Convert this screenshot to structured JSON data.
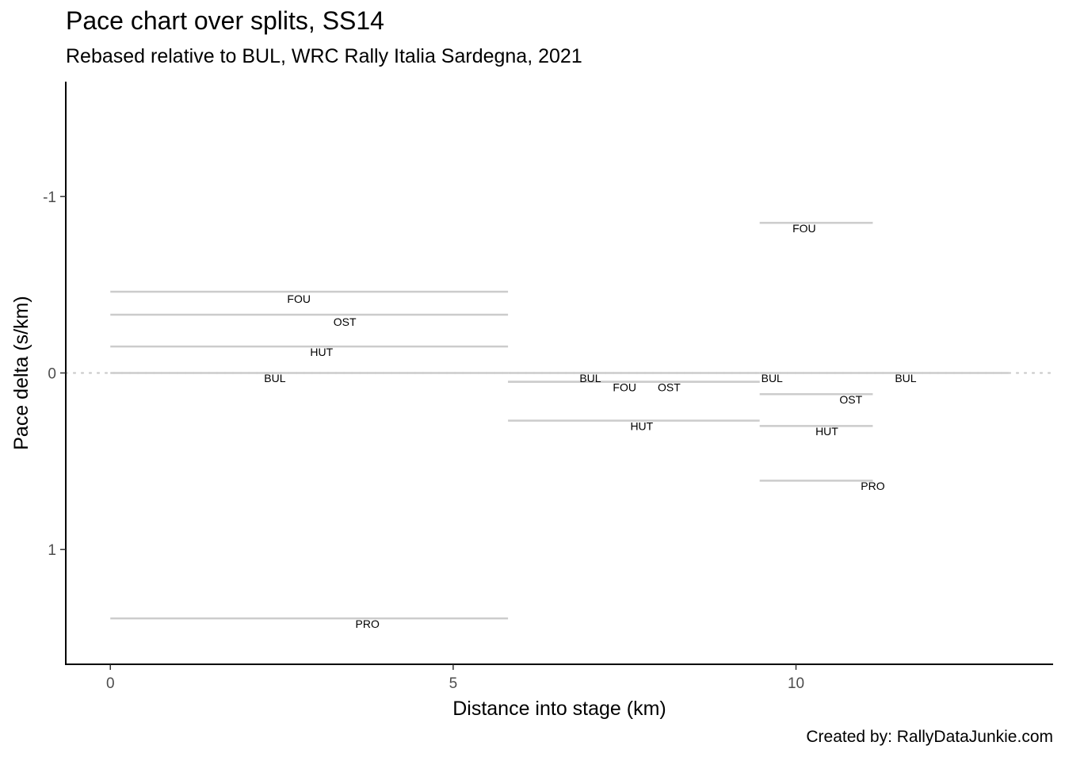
{
  "title": "Pace chart over splits, SS14",
  "subtitle": "Rebased relative to BUL, WRC Rally Italia Sardegna, 2021",
  "caption": "Created by: RallyDataJunkie.com",
  "chart_data": {
    "type": "line",
    "xlabel": "Distance into stage (km)",
    "ylabel": "Pace delta (s/km)",
    "xlim": [
      -0.65,
      13.75
    ],
    "ylim": [
      -1.65,
      1.65
    ],
    "y_reversed": true,
    "x_ticks": [
      0,
      5,
      10
    ],
    "x_tick_labels": [
      "0",
      "5",
      "10"
    ],
    "y_ticks": [
      -1,
      0,
      1
    ],
    "y_tick_labels": [
      "-1",
      "0",
      "1"
    ],
    "reference_line": {
      "y": 0,
      "style": "dotted",
      "color": "#cccccc"
    },
    "segment_color": "#cccccc",
    "segments": [
      {
        "driver": "FOU",
        "x_start": 0.0,
        "x_end": 5.8,
        "pace_delta": -0.46
      },
      {
        "driver": "OST",
        "x_start": 0.0,
        "x_end": 5.8,
        "pace_delta": -0.33
      },
      {
        "driver": "HUT",
        "x_start": 0.0,
        "x_end": 5.8,
        "pace_delta": -0.15
      },
      {
        "driver": "BUL",
        "x_start": 0.0,
        "x_end": 5.8,
        "pace_delta": 0.0
      },
      {
        "driver": "PRO",
        "x_start": 0.0,
        "x_end": 5.8,
        "pace_delta": 1.39
      },
      {
        "driver": "BUL",
        "x_start": 5.8,
        "x_end": 9.47,
        "pace_delta": 0.0
      },
      {
        "driver": "FOU",
        "x_start": 5.8,
        "x_end": 9.47,
        "pace_delta": 0.05
      },
      {
        "driver": "OST",
        "x_start": 5.8,
        "x_end": 9.47,
        "pace_delta": 0.05
      },
      {
        "driver": "HUT",
        "x_start": 5.8,
        "x_end": 9.47,
        "pace_delta": 0.27
      },
      {
        "driver": "FOU",
        "x_start": 9.47,
        "x_end": 11.12,
        "pace_delta": -0.85
      },
      {
        "driver": "BUL",
        "x_start": 9.47,
        "x_end": 11.12,
        "pace_delta": 0.0
      },
      {
        "driver": "OST",
        "x_start": 9.47,
        "x_end": 11.12,
        "pace_delta": 0.12
      },
      {
        "driver": "HUT",
        "x_start": 9.47,
        "x_end": 11.12,
        "pace_delta": 0.3
      },
      {
        "driver": "PRO",
        "x_start": 9.47,
        "x_end": 11.12,
        "pace_delta": 0.61
      },
      {
        "driver": "BUL",
        "x_start": 11.12,
        "x_end": 13.1,
        "pace_delta": 0.0
      }
    ],
    "labels": [
      {
        "text": "FOU",
        "x": 2.75,
        "y": -0.42
      },
      {
        "text": "OST",
        "x": 3.42,
        "y": -0.29
      },
      {
        "text": "HUT",
        "x": 3.08,
        "y": -0.12
      },
      {
        "text": "BUL",
        "x": 2.4,
        "y": 0.03
      },
      {
        "text": "PRO",
        "x": 3.75,
        "y": 1.42
      },
      {
        "text": "BUL",
        "x": 7.0,
        "y": 0.03
      },
      {
        "text": "FOU",
        "x": 7.5,
        "y": 0.08
      },
      {
        "text": "OST",
        "x": 8.15,
        "y": 0.08
      },
      {
        "text": "HUT",
        "x": 7.75,
        "y": 0.3
      },
      {
        "text": "FOU",
        "x": 10.12,
        "y": -0.82
      },
      {
        "text": "BUL",
        "x": 9.65,
        "y": 0.03
      },
      {
        "text": "OST",
        "x": 10.8,
        "y": 0.15
      },
      {
        "text": "HUT",
        "x": 10.45,
        "y": 0.33
      },
      {
        "text": "PRO",
        "x": 11.12,
        "y": 0.64
      },
      {
        "text": "BUL",
        "x": 11.6,
        "y": 0.03
      }
    ]
  }
}
